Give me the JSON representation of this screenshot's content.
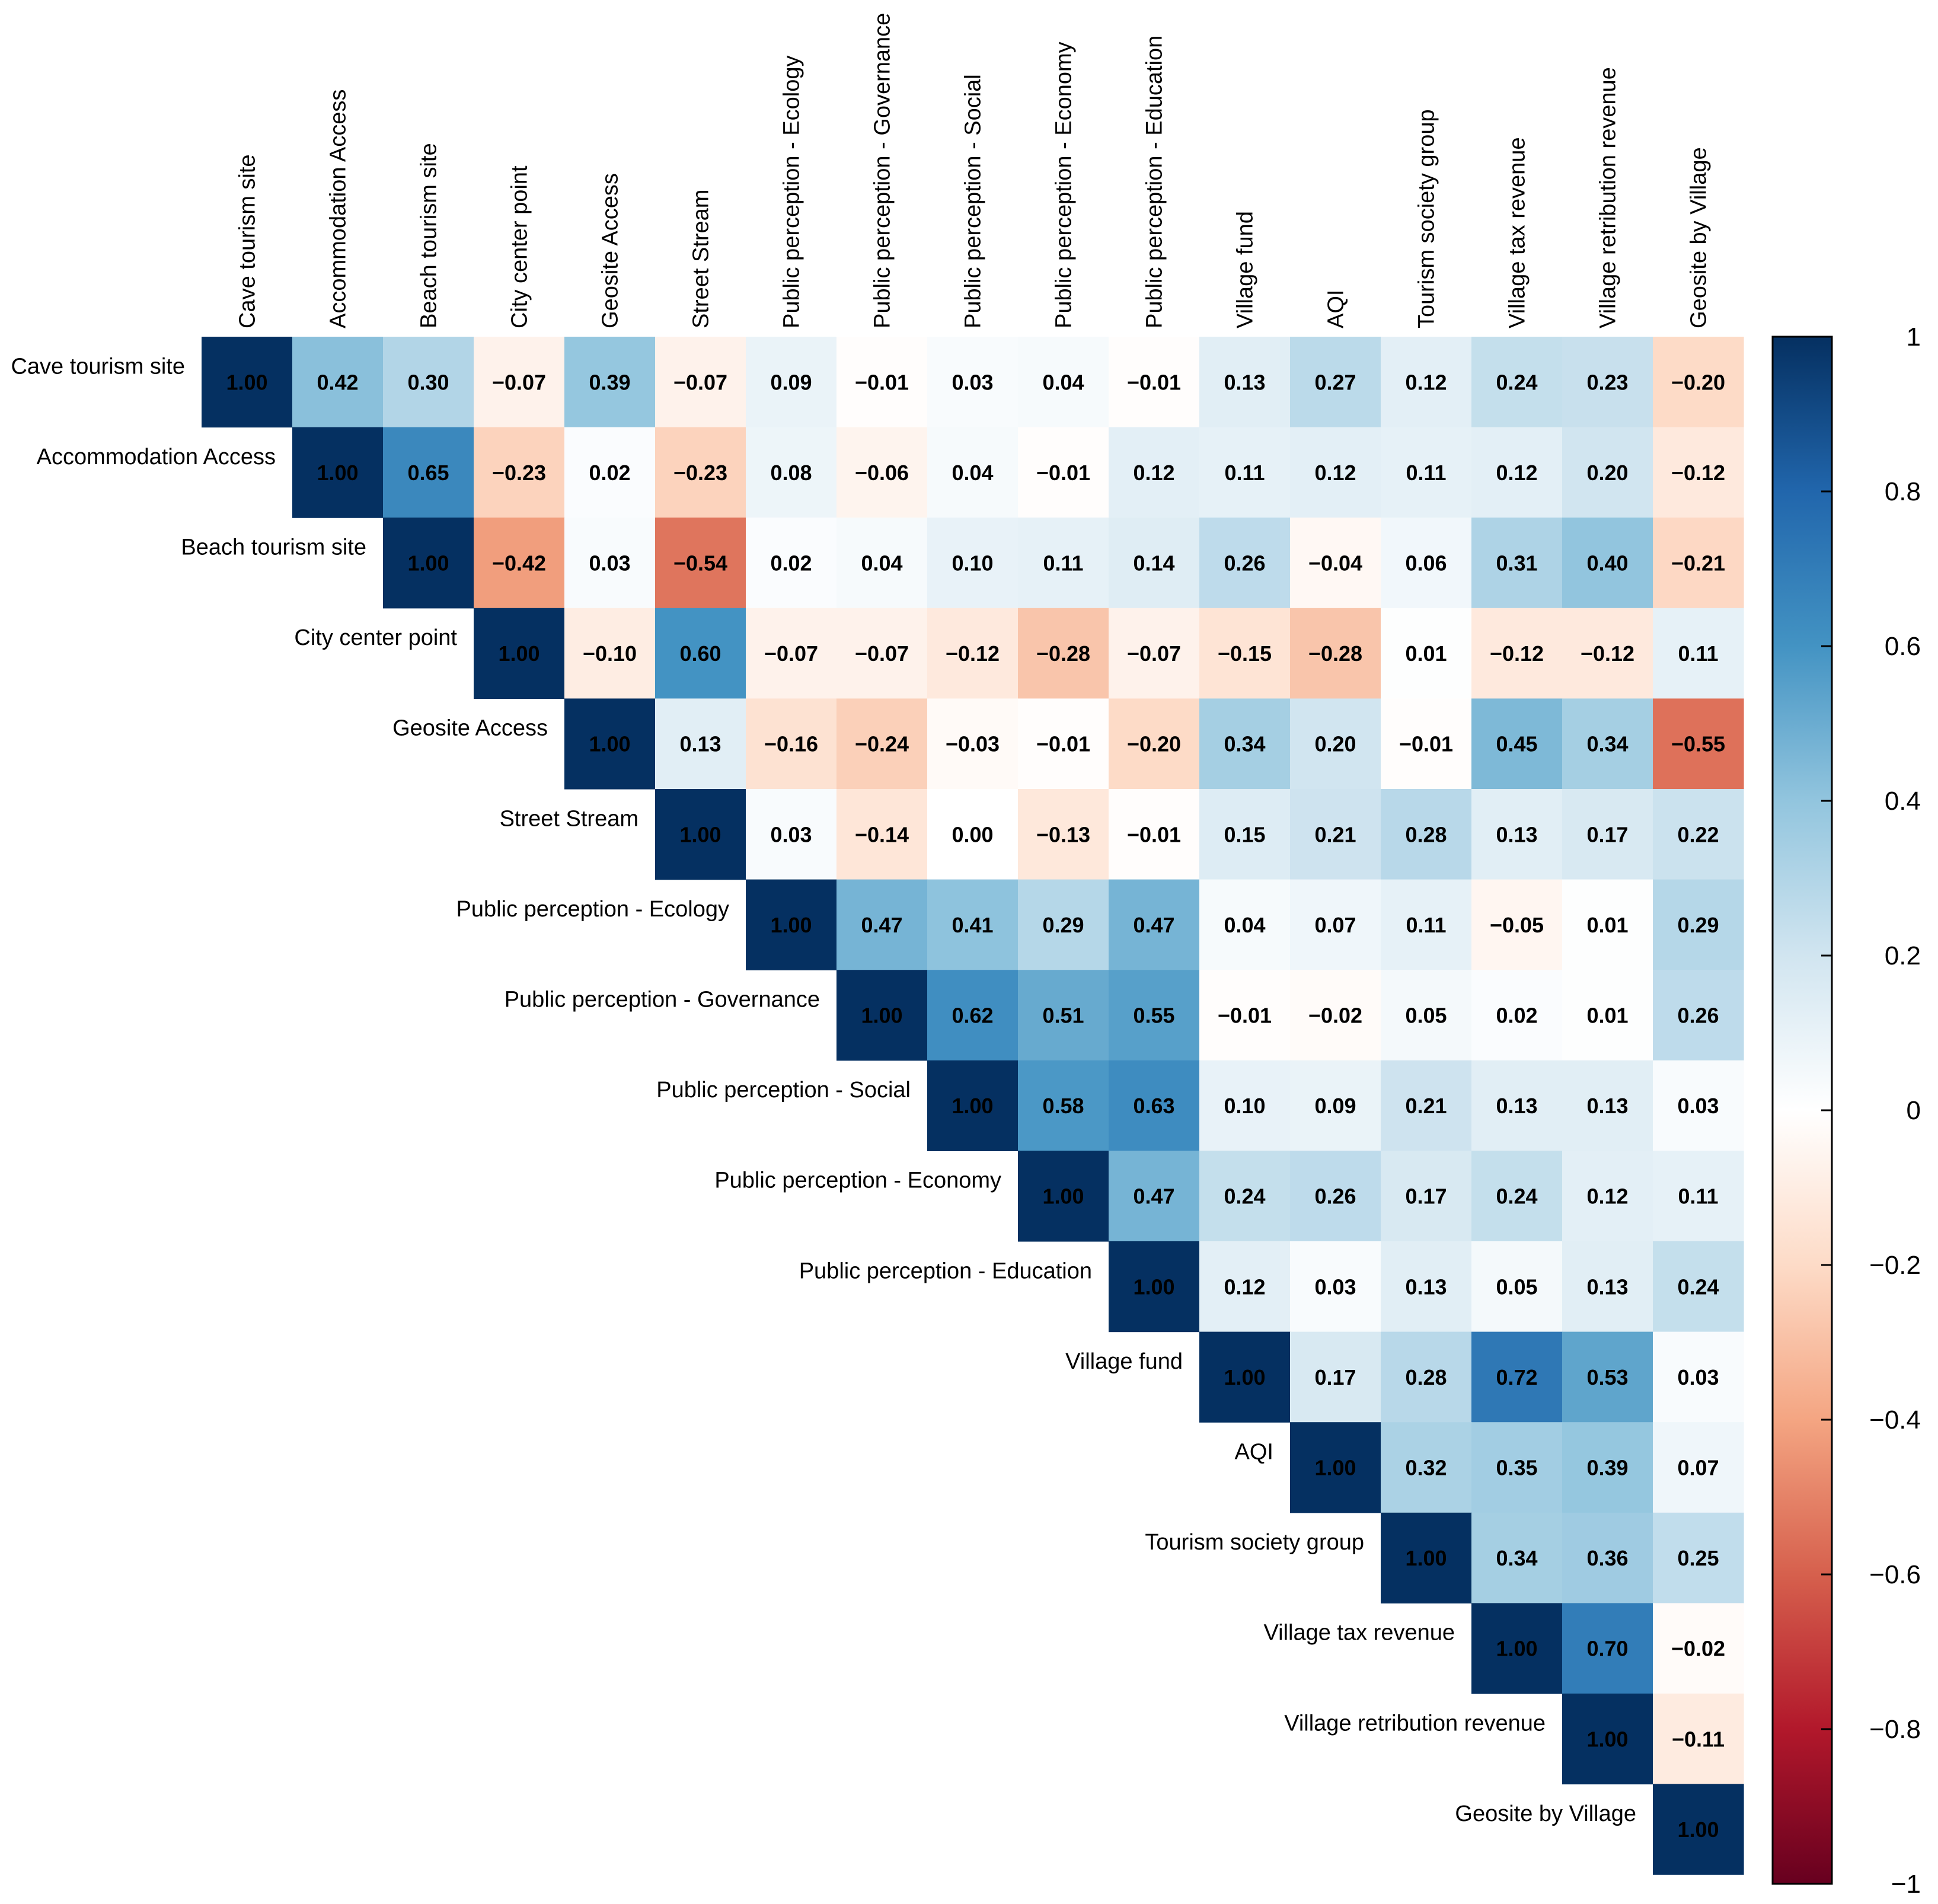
{
  "chart_data": {
    "type": "heatmap",
    "title": "",
    "xlabel": "",
    "ylabel": "",
    "variables": [
      "Cave tourism site",
      "Accommodation Access",
      "Beach tourism site",
      "City center point",
      "Geosite Access",
      "Street Stream",
      "Public perception - Ecology",
      "Public perception - Governance",
      "Public perception - Social",
      "Public perception - Economy",
      "Public perception - Education",
      "Village fund",
      "AQI",
      "Tourism society group",
      "Village tax revenue",
      "Village retribution revenue",
      "Geosite by Village"
    ],
    "matrix": [
      [
        "1.00",
        "0.42",
        "0.30",
        "−0.07",
        "0.39",
        "−0.07",
        "0.09",
        "−0.01",
        "0.03",
        "0.04",
        "−0.01",
        "0.13",
        "0.27",
        "0.12",
        "0.24",
        "0.23",
        "−0.20"
      ],
      [
        "1.00",
        "0.65",
        "−0.23",
        "0.02",
        "−0.23",
        "0.08",
        "−0.06",
        "0.04",
        "−0.01",
        "0.12",
        "0.11",
        "0.12",
        "0.11",
        "0.12",
        "0.20",
        "−0.12"
      ],
      [
        "1.00",
        "−0.42",
        "0.03",
        "−0.54",
        "0.02",
        "0.04",
        "0.10",
        "0.11",
        "0.14",
        "0.26",
        "−0.04",
        "0.06",
        "0.31",
        "0.40",
        "−0.21"
      ],
      [
        "1.00",
        "−0.10",
        "0.60",
        "−0.07",
        "−0.07",
        "−0.12",
        "−0.28",
        "−0.07",
        "−0.15",
        "−0.28",
        "0.01",
        "−0.12",
        "−0.12",
        "0.11"
      ],
      [
        "1.00",
        "0.13",
        "−0.16",
        "−0.24",
        "−0.03",
        "−0.01",
        "−0.20",
        "0.34",
        "0.20",
        "−0.01",
        "0.45",
        "0.34",
        "−0.55"
      ],
      [
        "1.00",
        "0.03",
        "−0.14",
        "0.00",
        "−0.13",
        "−0.01",
        "0.15",
        "0.21",
        "0.28",
        "0.13",
        "0.17",
        "0.22"
      ],
      [
        "1.00",
        "0.47",
        "0.41",
        "0.29",
        "0.47",
        "0.04",
        "0.07",
        "0.11",
        "−0.05",
        "0.01",
        "0.29"
      ],
      [
        "1.00",
        "0.62",
        "0.51",
        "0.55",
        "−0.01",
        "−0.02",
        "0.05",
        "0.02",
        "0.01",
        "0.26"
      ],
      [
        "1.00",
        "0.58",
        "0.63",
        "0.10",
        "0.09",
        "0.21",
        "0.13",
        "0.13",
        "0.03"
      ],
      [
        "1.00",
        "0.47",
        "0.24",
        "0.26",
        "0.17",
        "0.24",
        "0.12",
        "0.11"
      ],
      [
        "1.00",
        "0.12",
        "0.03",
        "0.13",
        "0.05",
        "0.13",
        "0.24"
      ],
      [
        "1.00",
        "0.17",
        "0.28",
        "0.72",
        "0.53",
        "0.03"
      ],
      [
        "1.00",
        "0.32",
        "0.35",
        "0.39",
        "0.07"
      ],
      [
        "1.00",
        "0.34",
        "0.36",
        "0.25"
      ],
      [
        "1.00",
        "0.70",
        "−0.02"
      ],
      [
        "1.00",
        "−0.11"
      ],
      [
        "1.00"
      ]
    ],
    "matrix_note": "Upper triangle; row i lists correlations with variables i..16",
    "colorbar": {
      "range": [
        -1,
        1
      ],
      "ticks": [
        "1",
        "0.8",
        "0.6",
        "0.4",
        "0.2",
        "0",
        "−0.2",
        "−0.4",
        "−0.6",
        "−0.8",
        "−1"
      ],
      "colors": [
        "#67001F",
        "#B2182B",
        "#D6604D",
        "#F4A582",
        "#FDDBC7",
        "#FFFFFF",
        "#D1E5F0",
        "#92C5DE",
        "#4393C3",
        "#2166AC",
        "#053061"
      ],
      "placement": "right"
    },
    "legend": "none"
  }
}
